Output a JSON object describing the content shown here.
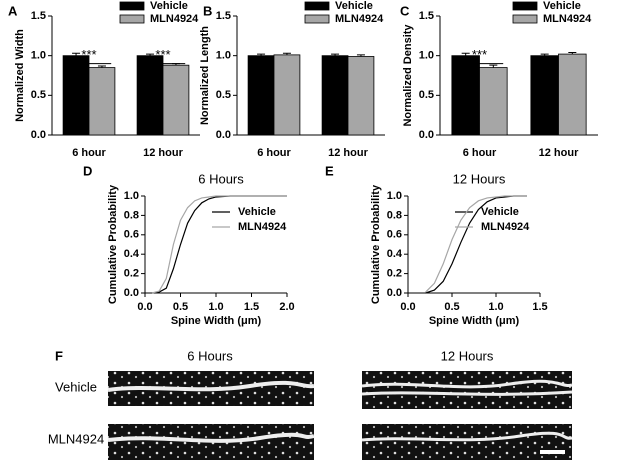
{
  "chart_data": [
    {
      "type": "bar",
      "label": "A",
      "ylabel": "Normalized Width",
      "categories": [
        "6 hour",
        "12 hour"
      ],
      "series": [
        {
          "name": "Vehicle",
          "color": "#000000",
          "values": [
            1.0,
            1.0
          ],
          "errors": [
            0.03,
            0.02
          ]
        },
        {
          "name": "MLN4924",
          "color": "#a6a6a6",
          "values": [
            0.85,
            0.88
          ],
          "errors": [
            0.02,
            0.02
          ]
        }
      ],
      "ylim": [
        0,
        1.5
      ],
      "yticks": [
        {
          "value": 0,
          "label": "0.0"
        },
        0.5,
        {
          "value": 1,
          "label": "1.0"
        },
        1.5
      ],
      "annotations": [
        {
          "text": "***",
          "category": "6 hour"
        },
        {
          "text": "***",
          "category": "12 hour"
        }
      ]
    },
    {
      "type": "bar",
      "label": "B",
      "ylabel": "Normalized Length",
      "categories": [
        "6 hour",
        "12 hour"
      ],
      "series": [
        {
          "name": "Vehicle",
          "color": "#000000",
          "values": [
            1.0,
            1.0
          ],
          "errors": [
            0.02,
            0.02
          ]
        },
        {
          "name": "MLN4924",
          "color": "#a6a6a6",
          "values": [
            1.01,
            0.99
          ],
          "errors": [
            0.02,
            0.02
          ]
        }
      ],
      "ylim": [
        0,
        1.5
      ],
      "yticks": [
        {
          "value": 0,
          "label": "0.0"
        },
        0.5,
        {
          "value": 1,
          "label": "1.0"
        },
        1.5
      ]
    },
    {
      "type": "bar",
      "label": "C",
      "ylabel": "Normalized  Density",
      "categories": [
        "6 hour",
        "12 hour"
      ],
      "series": [
        {
          "name": "Vehicle",
          "color": "#000000",
          "values": [
            1.0,
            1.0
          ],
          "errors": [
            0.03,
            0.02
          ]
        },
        {
          "name": "MLN4924",
          "color": "#a6a6a6",
          "values": [
            0.85,
            1.02
          ],
          "errors": [
            0.03,
            0.02
          ]
        }
      ],
      "ylim": [
        0,
        1.5
      ],
      "yticks": [
        {
          "value": 0,
          "label": "0.0"
        },
        0.5,
        {
          "value": 1,
          "label": "1.0"
        },
        1.5
      ],
      "annotations": [
        {
          "text": "***",
          "category": "6 hour"
        }
      ]
    },
    {
      "type": "line",
      "label": "D",
      "title": "6 Hours",
      "xlabel": "Spine Width (μm)",
      "ylabel": "Cumulative Probability",
      "x": [
        0.1,
        0.2,
        0.3,
        0.4,
        0.5,
        0.6,
        0.7,
        0.8,
        0.9,
        1.0,
        1.2,
        1.5,
        2.0
      ],
      "series": [
        {
          "name": "Vehicle",
          "color": "#000000",
          "values": [
            0,
            0.01,
            0.05,
            0.25,
            0.5,
            0.72,
            0.85,
            0.93,
            0.97,
            0.99,
            1.0,
            1.0,
            1.0
          ]
        },
        {
          "name": "MLN4924",
          "color": "#a6a6a6",
          "values": [
            0,
            0.02,
            0.15,
            0.5,
            0.75,
            0.88,
            0.95,
            0.98,
            0.99,
            1.0,
            1.0,
            1.0,
            1.0
          ]
        }
      ],
      "xlim": [
        0,
        2
      ],
      "xticks": [
        {
          "value": 0,
          "label": "0.0"
        },
        0.5,
        {
          "value": 1,
          "label": "1.0"
        },
        1.5,
        {
          "value": 2,
          "label": "2.0"
        }
      ],
      "ylim": [
        0,
        1
      ],
      "yticks": [
        {
          "value": 0,
          "label": "0.0"
        },
        0.2,
        0.4,
        0.6,
        0.8,
        {
          "value": 1,
          "label": "1.0"
        }
      ]
    },
    {
      "type": "line",
      "label": "E",
      "title": "12 Hours",
      "xlabel": "Spine Width (μm)",
      "ylabel": "Cumulative Probability",
      "x": [
        0.2,
        0.3,
        0.4,
        0.5,
        0.6,
        0.7,
        0.8,
        0.9,
        1.0,
        1.1,
        1.2,
        1.35
      ],
      "series": [
        {
          "name": "Vehicle",
          "color": "#000000",
          "values": [
            0,
            0.03,
            0.12,
            0.3,
            0.52,
            0.72,
            0.86,
            0.94,
            0.98,
            0.99,
            1.0,
            1.0
          ]
        },
        {
          "name": "MLN4924",
          "color": "#a6a6a6",
          "values": [
            0.01,
            0.1,
            0.3,
            0.55,
            0.75,
            0.88,
            0.95,
            0.98,
            0.99,
            1.0,
            1.0,
            1.0
          ]
        }
      ],
      "xlim": [
        0,
        1.5
      ],
      "xticks": [
        {
          "value": 0,
          "label": "0.0"
        },
        0.5,
        {
          "value": 1,
          "label": "1.0"
        },
        1.5
      ],
      "ylim": [
        0,
        1
      ],
      "yticks": [
        {
          "value": 0,
          "label": "0.0"
        },
        0.2,
        0.4,
        0.6,
        0.8,
        {
          "value": 1,
          "label": "1.0"
        }
      ]
    }
  ],
  "image_panel": {
    "label": "F",
    "columns": [
      "6 Hours",
      "12 Hours"
    ],
    "rows": [
      "Vehicle",
      "MLN4924"
    ]
  }
}
